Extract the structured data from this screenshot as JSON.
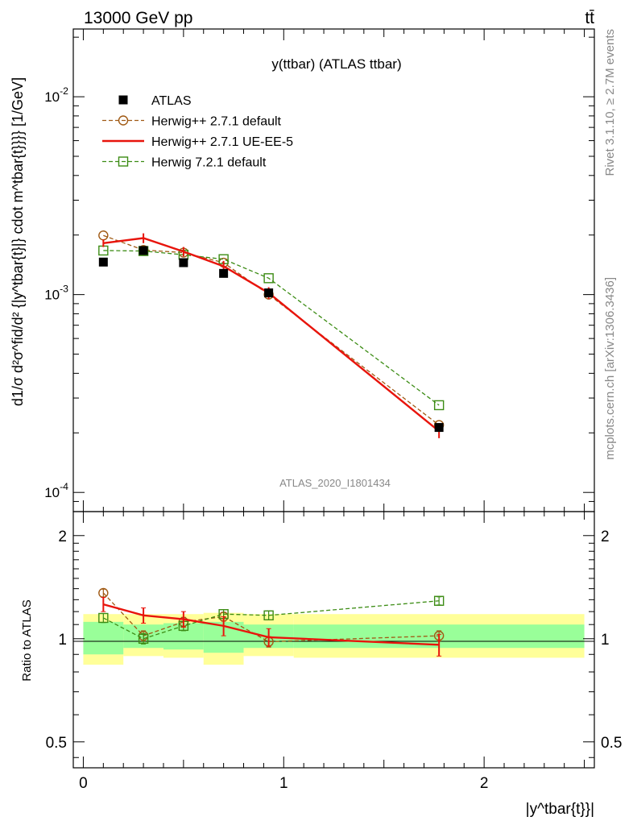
{
  "header": {
    "left": "13000 GeV pp",
    "right": "tt̄"
  },
  "side_text": {
    "rivet": "Rivet 3.1.10, ≥ 2.7M events",
    "site": "mcplots.cern.ch [arXiv:1306.3436]"
  },
  "chart_data": [
    {
      "type": "line",
      "panel": "main",
      "title": "y(ttbar) (ATLAS ttbar)",
      "watermark": "ATLAS_2020_I1801434",
      "ylabel": "d1/σ d²σ^fid/d² {|y^tbar{t}|} cdot m^tbar{t}}}} [1/GeV]",
      "yscale": "log",
      "ylim": [
        8e-05,
        0.022
      ],
      "xlim": [
        -0.05,
        2.55
      ],
      "yticks": [
        {
          "v": 0.0001,
          "label": "10^-4"
        },
        {
          "v": 0.001,
          "label": "10^-3"
        },
        {
          "v": 0.01,
          "label": "10^-2"
        }
      ],
      "legend_position": "top-left",
      "x": [
        0.1,
        0.3,
        0.5,
        0.7,
        0.925,
        1.775
      ],
      "bins": [
        [
          0.0,
          0.2
        ],
        [
          0.2,
          0.4
        ],
        [
          0.4,
          0.6
        ],
        [
          0.6,
          0.8
        ],
        [
          0.8,
          1.05
        ],
        [
          1.05,
          2.5
        ]
      ],
      "series": [
        {
          "name": "ATLAS",
          "key": "atlas",
          "color": "#000000",
          "marker": "square-filled",
          "values": [
            0.00146,
            0.00167,
            0.00145,
            0.00128,
            0.00102,
            0.000213
          ]
        },
        {
          "name": "Herwig++ 2.7.1 default",
          "key": "h271def",
          "color": "#a05a14",
          "marker": "circle-open",
          "dash": true,
          "values": [
            0.00199,
            0.00168,
            0.00163,
            0.00145,
            0.001,
            0.000219
          ]
        },
        {
          "name": "Herwig++ 2.7.1 UE-EE-5",
          "key": "h271ue",
          "color": "#e8140c",
          "marker": "none",
          "dash": false,
          "values": [
            0.00182,
            0.00193,
            0.00165,
            0.00139,
            0.00102,
            0.000204
          ],
          "errors": [
            8e-05,
            0.00011,
            9e-05,
            9e-05,
            7e-05,
            1.6e-05
          ]
        },
        {
          "name": "Herwig 7.2.1 default",
          "key": "h721def",
          "color": "#3c8c14",
          "marker": "square-open",
          "dash": true,
          "values": [
            0.00167,
            0.00166,
            0.00159,
            0.00151,
            0.00121,
            0.000276
          ]
        }
      ]
    },
    {
      "type": "line",
      "panel": "ratio",
      "ylabel": "Ratio to ATLAS",
      "xlabel": "|y^tbar{t}}|",
      "yscale": "log",
      "ylim": [
        0.42,
        2.35
      ],
      "xlim": [
        -0.05,
        2.55
      ],
      "yticks": [
        {
          "v": 0.5,
          "label": "0.5"
        },
        {
          "v": 1,
          "label": "1"
        },
        {
          "v": 2,
          "label": "2"
        }
      ],
      "xticks": [
        {
          "v": 0,
          "label": "0"
        },
        {
          "v": 1,
          "label": "1"
        },
        {
          "v": 2,
          "label": "2"
        }
      ],
      "x": [
        0.1,
        0.3,
        0.5,
        0.7,
        0.925,
        1.775
      ],
      "bands": {
        "bins": [
          [
            0.0,
            0.2
          ],
          [
            0.2,
            0.4
          ],
          [
            0.4,
            0.6
          ],
          [
            0.6,
            0.8
          ],
          [
            0.8,
            1.05
          ],
          [
            1.05,
            2.5
          ]
        ],
        "stat_low": [
          0.9,
          0.94,
          0.93,
          0.91,
          0.94,
          0.94
        ],
        "stat_high": [
          1.12,
          1.1,
          1.11,
          1.12,
          1.1,
          1.1
        ],
        "total_low": [
          0.84,
          0.89,
          0.88,
          0.84,
          0.89,
          0.88
        ],
        "total_high": [
          1.18,
          1.18,
          1.18,
          1.19,
          1.18,
          1.18
        ],
        "stat_color": "#99ff99",
        "total_color": "#ffff99"
      },
      "series": [
        {
          "name": "Herwig++ 2.7.1 default",
          "key": "h271def",
          "color": "#a05a14",
          "marker": "circle-open",
          "dash": true,
          "values": [
            1.36,
            1.02,
            1.12,
            1.16,
            0.98,
            1.02
          ]
        },
        {
          "name": "Herwig++ 2.7.1 UE-EE-5",
          "key": "h271ue",
          "color": "#e8140c",
          "marker": "none",
          "dash": false,
          "values": [
            1.26,
            1.17,
            1.14,
            1.09,
            1.01,
            0.96
          ],
          "errors": [
            0.06,
            0.06,
            0.06,
            0.07,
            0.06,
            0.07
          ]
        },
        {
          "name": "Herwig 7.2.1 default",
          "key": "h721def",
          "color": "#3c8c14",
          "marker": "square-open",
          "dash": true,
          "values": [
            1.15,
            1.0,
            1.09,
            1.18,
            1.17,
            1.29
          ]
        }
      ]
    }
  ]
}
